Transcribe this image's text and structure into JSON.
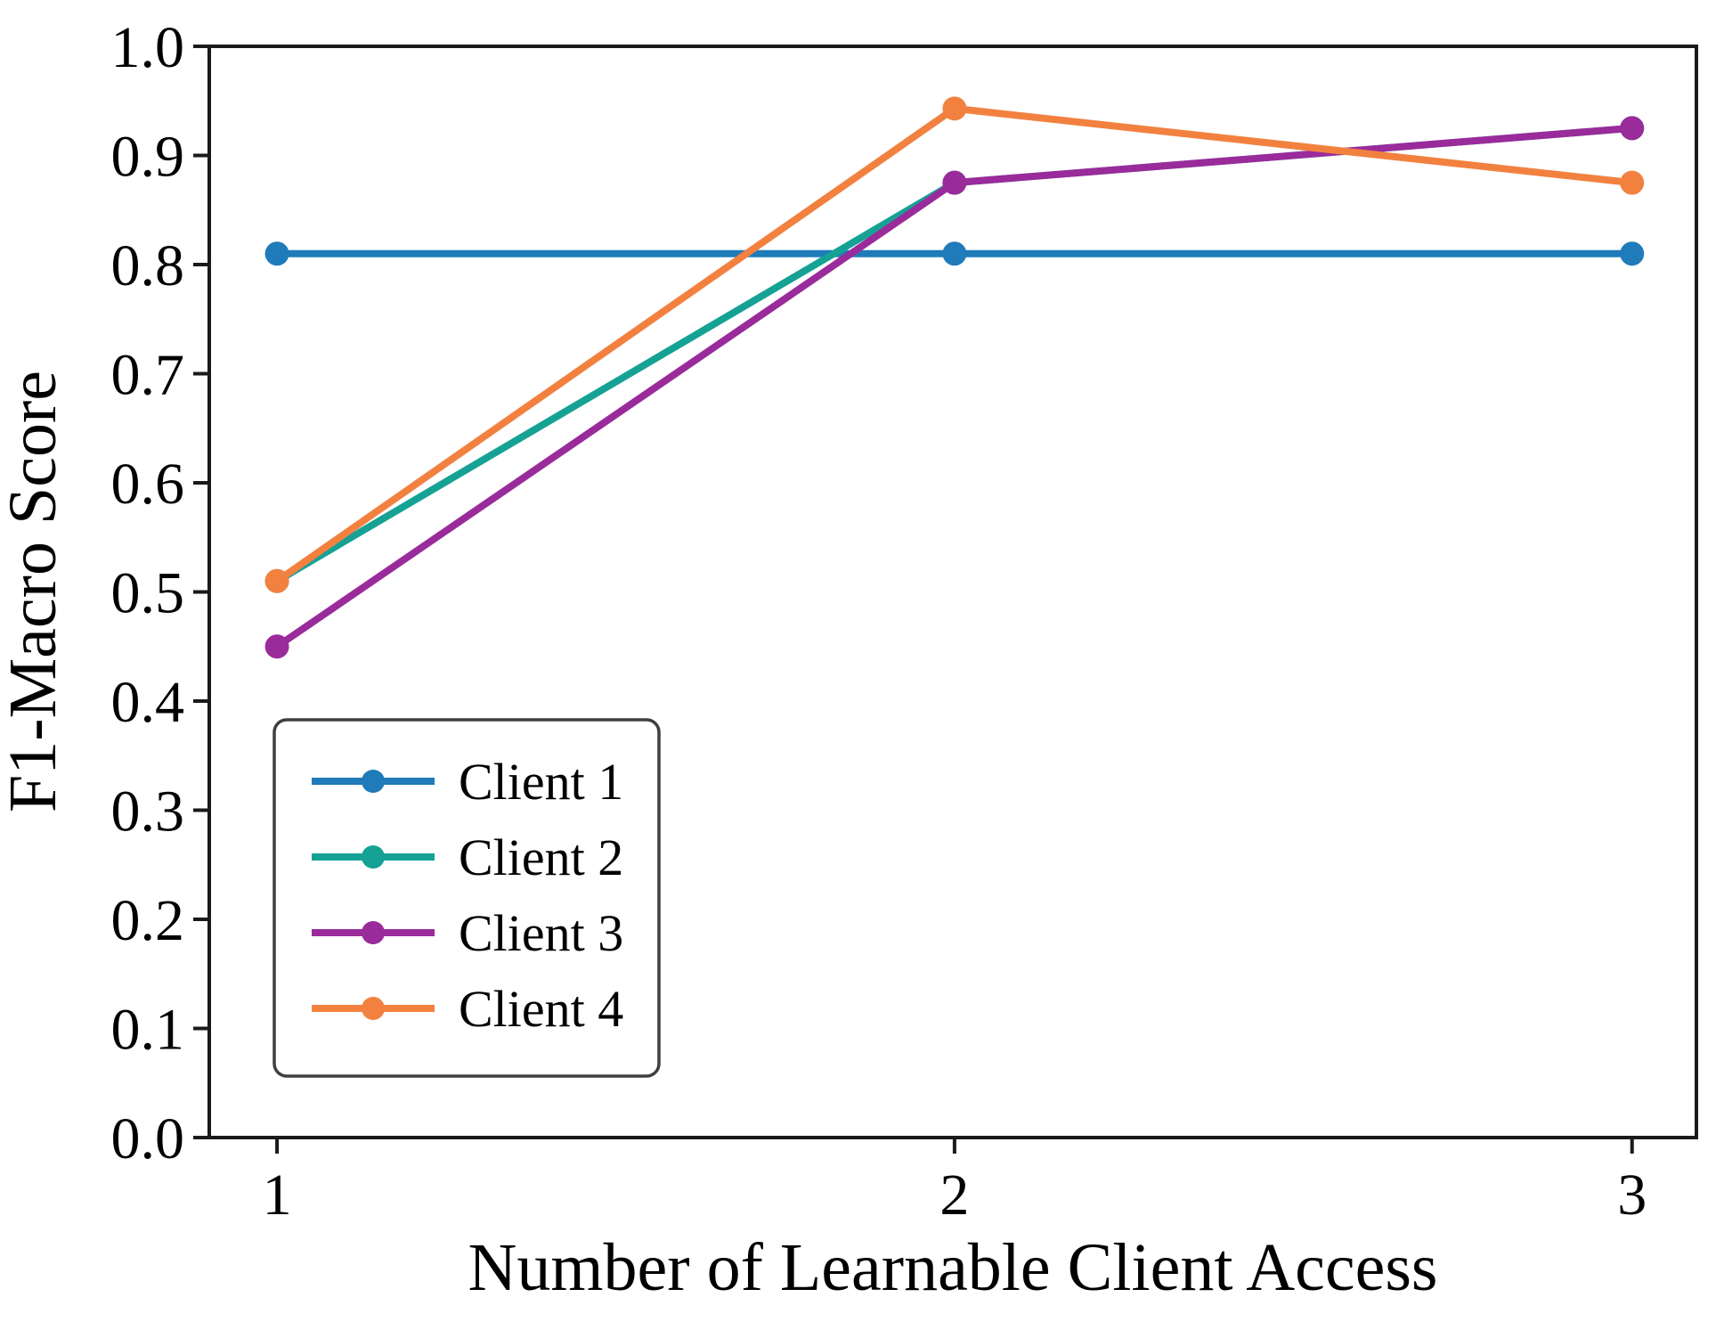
{
  "chart_data": {
    "type": "line",
    "title": "",
    "xlabel": "Number of Learnable Client Access",
    "ylabel": "F1-Macro Score",
    "marker": "circle",
    "grid": false,
    "legend_position": "lower left",
    "x": [
      1,
      2,
      3
    ],
    "xticks": [
      1,
      2,
      3
    ],
    "yticks": [
      0.0,
      0.1,
      0.2,
      0.3,
      0.4,
      0.5,
      0.6,
      0.7,
      0.8,
      0.9,
      1.0
    ],
    "xlim": [
      0.9,
      3.095
    ],
    "ylim": [
      0.0,
      1.0
    ],
    "series": [
      {
        "name": "Client 1",
        "color": "#1F7BB9",
        "values": [
          0.81,
          0.81,
          0.81
        ]
      },
      {
        "name": "Client 2",
        "color": "#15A294",
        "values": [
          0.51,
          0.875,
          0.925
        ]
      },
      {
        "name": "Client 3",
        "color": "#9A2B9B",
        "values": [
          0.45,
          0.875,
          0.925
        ]
      },
      {
        "name": "Client 4",
        "color": "#F28140",
        "values": [
          0.51,
          0.943,
          0.875
        ]
      }
    ],
    "axis_color": "#1a1a1a",
    "legend_border_color": "#3f3f3f"
  }
}
